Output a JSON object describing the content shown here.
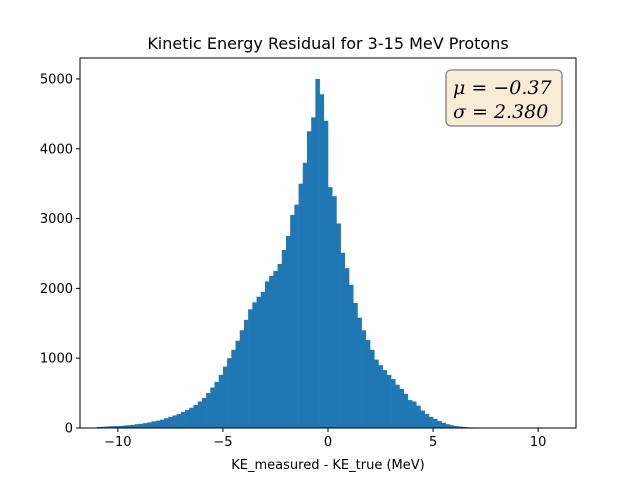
{
  "chart_data": {
    "type": "bar",
    "title": "Kinetic Energy Residual for 3-15 MeV Protons",
    "xlabel": "KE_measured - KE_true (MeV)",
    "ylabel": "",
    "xlim": [
      -11.8,
      11.8
    ],
    "ylim": [
      0,
      5300
    ],
    "xticks": [
      -10,
      -5,
      0,
      5,
      10
    ],
    "xtick_labels": [
      "−10",
      "−5",
      "0",
      "5",
      "10"
    ],
    "yticks": [
      0,
      1000,
      2000,
      3000,
      4000,
      5000
    ],
    "ytick_labels": [
      "0",
      "1000",
      "2000",
      "3000",
      "4000",
      "5000"
    ],
    "grid": false,
    "bar_color": "#1f77b4",
    "bin_start": -11.0,
    "bin_width": 0.2,
    "values": [
      15,
      18,
      22,
      25,
      28,
      30,
      35,
      40,
      45,
      55,
      60,
      70,
      80,
      95,
      105,
      120,
      140,
      160,
      180,
      200,
      230,
      260,
      290,
      330,
      380,
      430,
      500,
      580,
      660,
      760,
      880,
      1000,
      1120,
      1250,
      1400,
      1550,
      1700,
      1800,
      1880,
      1950,
      2100,
      2180,
      2250,
      2350,
      2550,
      2750,
      3050,
      3200,
      3500,
      3800,
      4250,
      4450,
      5000,
      4780,
      4400,
      3450,
      3320,
      2930,
      2510,
      2290,
      2050,
      1790,
      1580,
      1400,
      1260,
      1120,
      980,
      900,
      830,
      760,
      700,
      620,
      560,
      490,
      400,
      380,
      320,
      250,
      200,
      160,
      130,
      100,
      75,
      55,
      40,
      28,
      20,
      15,
      10,
      8,
      5,
      4,
      3,
      2,
      2,
      1
    ],
    "annotation": {
      "lines": [
        "μ = −0.37",
        "σ = 2.380"
      ],
      "background": "#f9ecd6",
      "edge": "#7f7f7f"
    }
  }
}
